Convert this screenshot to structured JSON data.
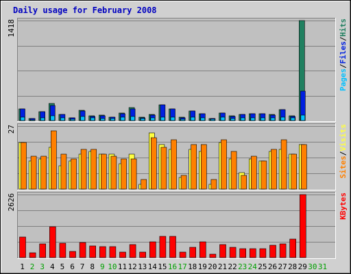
{
  "chart_data": {
    "type": "bar",
    "title": "Daily usage for February 2008",
    "days": [
      "1",
      "2",
      "3",
      "4",
      "5",
      "6",
      "7",
      "8",
      "9",
      "10",
      "11",
      "12",
      "13",
      "14",
      "15",
      "16",
      "17",
      "18",
      "19",
      "20",
      "21",
      "22",
      "23",
      "24",
      "25",
      "26",
      "27",
      "28",
      "29",
      "30",
      "31"
    ],
    "weekend_days": [
      "2",
      "3",
      "9",
      "10",
      "16",
      "17",
      "23",
      "24",
      "30",
      "31"
    ],
    "days_in_month": 29,
    "colors": {
      "pages": "#00c0ff",
      "files": "#0020e0",
      "hits": "#208060",
      "visits": "#ffff40",
      "sites": "#ff8000",
      "kbytes": "#ff0000",
      "panel_bg": "#c0c0c0",
      "frame_bg": "#d0d0d0",
      "title": "#0000c0",
      "weekend_label": "#00a000"
    },
    "panels": [
      {
        "ymax_label": "1418",
        "ymax": 1418,
        "legend": [
          {
            "text": "Pages",
            "color_key": "pages"
          },
          {
            "text": "/",
            "color_key": null
          },
          {
            "text": "Files",
            "color_key": "files"
          },
          {
            "text": "/",
            "color_key": null
          },
          {
            "text": "Hits",
            "color_key": "hits"
          }
        ],
        "series": [
          {
            "name": "Hits",
            "color_key": "hits",
            "values": [
              165,
              28,
              125,
              240,
              90,
              40,
              150,
              70,
              75,
              50,
              105,
              185,
              45,
              85,
              220,
              165,
              45,
              140,
              95,
              30,
              110,
              65,
              90,
              100,
              95,
              85,
              160,
              70,
              1418
            ]
          },
          {
            "name": "Files",
            "color_key": "files",
            "values": [
              165,
              25,
              125,
              210,
              90,
              40,
              140,
              60,
              70,
              45,
              95,
              165,
              40,
              80,
              220,
              165,
              40,
              140,
              95,
              25,
              110,
              55,
              85,
              100,
              95,
              80,
              160,
              60,
              420
            ]
          },
          {
            "name": "Pages",
            "color_key": "pages",
            "values": [
              45,
              10,
              40,
              70,
              35,
              20,
              55,
              35,
              30,
              25,
              45,
              55,
              25,
              35,
              50,
              45,
              20,
              45,
              40,
              15,
              45,
              30,
              35,
              40,
              40,
              35,
              50,
              35,
              75
            ]
          }
        ]
      },
      {
        "ymax_label": "27",
        "ymax": 27,
        "legend": [
          {
            "text": "Sites",
            "color_key": "sites"
          },
          {
            "text": "/",
            "color_key": null
          },
          {
            "text": "Visits",
            "color_key": "visits"
          }
        ],
        "series": [
          {
            "name": "Visits",
            "color_key": "visits",
            "values": [
              20,
              12,
              13,
              18,
              10,
              12,
              15,
              16,
              15,
              15,
              11,
              15,
              2,
              24,
              19,
              17,
              5,
              17,
              16,
              2,
              20,
              13,
              7,
              13,
              12,
              16,
              17,
              15,
              19
            ]
          },
          {
            "name": "Sites",
            "color_key": "sites",
            "values": [
              20,
              14,
              14,
              25,
              15,
              13,
              17,
              17,
              15,
              14,
              13,
              13,
              4,
              22,
              18,
              21,
              6,
              19,
              19,
              4,
              21,
              16,
              6,
              14,
              12,
              17,
              21,
              15,
              19
            ]
          }
        ]
      },
      {
        "ymax_label": "2626",
        "ymax": 2626,
        "legend": [
          {
            "text": "KBytes",
            "color_key": "kbytes"
          }
        ],
        "series": [
          {
            "name": "KBytes",
            "color_key": "kbytes",
            "values": [
              850,
              200,
              560,
              1280,
              600,
              260,
              630,
              480,
              470,
              470,
              230,
              550,
              240,
              650,
              880,
              880,
              220,
              420,
              650,
              130,
              530,
              420,
              360,
              380,
              380,
              500,
              560,
              770,
              2626
            ]
          }
        ]
      }
    ]
  }
}
